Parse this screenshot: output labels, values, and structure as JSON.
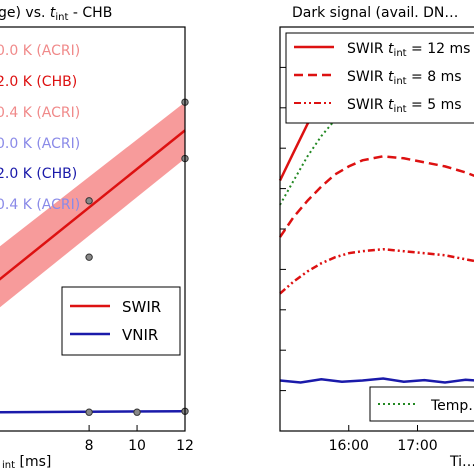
{
  "chart_data": [
    {
      "type": "line",
      "title": "…ge) vs. t_int - CHB",
      "title_parts": {
        "pre": "ge) vs. ",
        "t": "t",
        "sub": "int",
        "post": " - CHB"
      },
      "xlabel": "…int [ms]",
      "xlabel_parts": {
        "sub": "int",
        "post": " [ms]"
      },
      "ylabel": "",
      "xlim": [
        4.2,
        12
      ],
      "ylim": [
        -0.4,
        8.2
      ],
      "x_ticks": [
        8,
        10,
        12
      ],
      "x_tick_labels": [
        "8",
        "10",
        "12"
      ],
      "grid": false,
      "legend_top": {
        "placement": "top-left (cut off)",
        "entries": [
          {
            "label": "0.0 K (ACRI)",
            "color": "#f08a8a"
          },
          {
            "label": "2.0 K (CHB)",
            "color": "#dd1111"
          },
          {
            "label": "0.4 K (ACRI)",
            "color": "#f08a8a"
          },
          {
            "label": "0.0 K (ACRI)",
            "color": "#8a8ae8"
          },
          {
            "label": "2.0 K (CHB)",
            "color": "#1a1aaa"
          },
          {
            "label": "0.4 K (ACRI)",
            "color": "#8a8ae8"
          }
        ]
      },
      "legend_bottom": {
        "placement": "bottom-right",
        "entries": [
          {
            "label": "SWIR",
            "color": "#dd1111"
          },
          {
            "label": "VNIR",
            "color": "#1a1aaa"
          }
        ]
      },
      "series": [
        {
          "name": "SWIR",
          "color": "#dd1111",
          "x": [
            4.2,
            12
          ],
          "y": [
            2.8,
            6.0
          ],
          "band_upper": [
            3.5,
            6.6
          ],
          "band_lower": [
            2.2,
            5.4
          ]
        },
        {
          "name": "VNIR",
          "color": "#1a1aaa",
          "x": [
            4.2,
            12
          ],
          "y": [
            0.0,
            0.02
          ]
        }
      ],
      "markers": [
        {
          "x": 8,
          "y": 4.5
        },
        {
          "x": 8,
          "y": 3.3
        },
        {
          "x": 12,
          "y": 6.6
        },
        {
          "x": 12,
          "y": 5.4
        },
        {
          "x": 8,
          "y": 0.0
        },
        {
          "x": 10,
          "y": 0.0
        },
        {
          "x": 12,
          "y": 0.02
        }
      ]
    },
    {
      "type": "line",
      "title": "Dark signal (avail. DN…",
      "xlabel": "Ti…",
      "ylabel": "",
      "xlim": [
        15.0,
        18.2
      ],
      "ylim": [
        0,
        10
      ],
      "x_ticks": [
        16.0,
        17.0
      ],
      "x_tick_labels": [
        "16:00",
        "17:00"
      ],
      "grid": false,
      "legend_top": {
        "placement": "top (cut off right)",
        "entries": [
          {
            "label": "SWIR t_int = 12 ms",
            "pre": "SWIR ",
            "sub": "int",
            "post": " = 12 ms",
            "color": "#dd1111",
            "style": "solid"
          },
          {
            "label": "SWIR t_int = 8 ms",
            "pre": "SWIR ",
            "sub": "int",
            "post": " = 8 ms",
            "color": "#dd1111",
            "style": "dashed"
          },
          {
            "label": "SWIR t_int = 5 ms",
            "pre": "SWIR ",
            "sub": "int",
            "post": " = 5 ms",
            "color": "#dd1111",
            "style": "dashdot"
          }
        ]
      },
      "legend_bottom": {
        "placement": "bottom-right (cut off)",
        "entries": [
          {
            "label": "Temp…",
            "color": "#228822",
            "style": "dotted"
          }
        ]
      },
      "series": [
        {
          "name": "SWIR t_int = 12 ms",
          "color": "#dd1111",
          "style": "solid",
          "x": [
            15.0,
            15.2,
            15.4,
            15.6,
            15.8,
            16.0,
            16.2,
            16.5,
            16.8,
            17.1,
            17.4,
            17.7,
            18.0,
            18.2
          ],
          "y": [
            6.2,
            6.9,
            7.6,
            8.2,
            8.6,
            8.9,
            9.1,
            9.15,
            9.05,
            8.9,
            8.7,
            8.4,
            8.15,
            8.0
          ]
        },
        {
          "name": "Temp…",
          "color": "#228822",
          "style": "dotted",
          "x": [
            15.0,
            15.2,
            15.4,
            15.6,
            15.8,
            16.0,
            16.2,
            16.5,
            16.8,
            17.1,
            17.4,
            17.7,
            18.0,
            18.2
          ],
          "y": [
            5.6,
            6.2,
            6.8,
            7.3,
            7.7,
            8.0,
            8.15,
            8.25,
            8.2,
            8.1,
            7.95,
            7.75,
            7.5,
            7.35
          ]
        },
        {
          "name": "SWIR t_int = 8 ms",
          "color": "#dd1111",
          "style": "dashed",
          "x": [
            15.0,
            15.2,
            15.4,
            15.6,
            15.8,
            16.0,
            16.2,
            16.5,
            16.8,
            17.1,
            17.4,
            17.7,
            18.0,
            18.2
          ],
          "y": [
            4.8,
            5.3,
            5.7,
            6.05,
            6.35,
            6.55,
            6.7,
            6.8,
            6.75,
            6.65,
            6.55,
            6.4,
            6.2,
            6.1
          ]
        },
        {
          "name": "SWIR t_int = 5 ms",
          "color": "#dd1111",
          "style": "dashdot",
          "x": [
            15.0,
            15.2,
            15.4,
            15.6,
            15.8,
            16.0,
            16.2,
            16.5,
            16.8,
            17.1,
            17.4,
            17.7,
            18.0,
            18.2
          ],
          "y": [
            3.4,
            3.7,
            3.95,
            4.15,
            4.3,
            4.4,
            4.45,
            4.5,
            4.45,
            4.4,
            4.35,
            4.25,
            4.15,
            4.1
          ]
        },
        {
          "name": "VNIR",
          "color": "#1a1aaa",
          "style": "solid",
          "x": [
            15.0,
            15.3,
            15.6,
            15.9,
            16.2,
            16.5,
            16.8,
            17.1,
            17.4,
            17.7,
            18.0,
            18.2
          ],
          "y": [
            1.25,
            1.2,
            1.28,
            1.22,
            1.25,
            1.3,
            1.22,
            1.26,
            1.2,
            1.27,
            1.23,
            1.25
          ]
        }
      ]
    }
  ]
}
